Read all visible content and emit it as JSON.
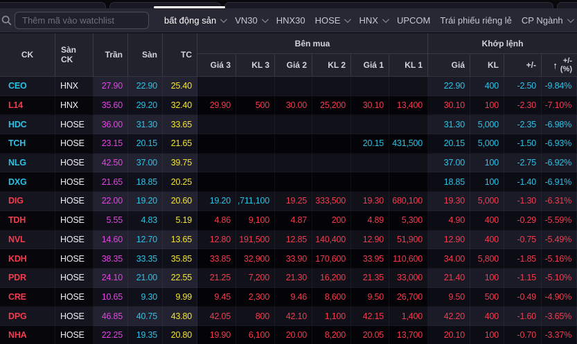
{
  "colors": {
    "ceiling": "#e445e4",
    "floor": "#2cc2e6",
    "reference": "#f3e52f",
    "down": "#f43b4e"
  },
  "topbar": {
    "search_placeholder": "Thêm mã vào watchlist",
    "tabs": [
      {
        "label": "bất động sản",
        "chevron": true,
        "active": true
      },
      {
        "label": "VN30",
        "chevron": true,
        "active": false
      },
      {
        "label": "HNX30",
        "chevron": false,
        "active": false
      },
      {
        "label": "HOSE",
        "chevron": true,
        "active": false
      },
      {
        "label": "HNX",
        "chevron": true,
        "active": false
      },
      {
        "label": "UPCOM",
        "chevron": false,
        "active": false
      },
      {
        "label": "Trái phiếu riêng lẻ",
        "chevron": false,
        "active": false
      },
      {
        "label": "CP Ngành",
        "chevron": true,
        "active": false
      }
    ]
  },
  "table": {
    "groups": {
      "buy": "Bên mua",
      "matched": "Khớp lệnh"
    },
    "header": {
      "ck": "CK",
      "san_ck": "Sàn CK",
      "tran": "Trần",
      "san": "Sàn",
      "tc": "TC",
      "gia3": "Giá 3",
      "kl3": "KL 3",
      "gia2": "Giá 2",
      "kl2": "KL 2",
      "gia1": "Giá 1",
      "kl1": "KL 1",
      "gia": "Giá",
      "kl": "KL",
      "chg": "+/-",
      "pct_line1": "+/-",
      "pct_line2": "(%)",
      "sort_icon": "up-arrow"
    },
    "rows": [
      {
        "ticker": "CEO",
        "ticker_state": "f",
        "exchange": "HNX",
        "ceiling": "27.90",
        "floor": "22.90",
        "reference": "25.40",
        "buy": [
          [
            "",
            ""
          ],
          [
            "",
            ""
          ],
          [
            "",
            ""
          ],
          [
            "",
            ""
          ],
          [
            "",
            ""
          ],
          [
            "",
            ""
          ]
        ],
        "match": [
          [
            "22.90",
            "f"
          ],
          [
            "400",
            "f"
          ],
          [
            "-2.50",
            "f"
          ],
          [
            "-9.84%",
            "f"
          ]
        ]
      },
      {
        "ticker": "L14",
        "ticker_state": "d",
        "exchange": "HNX",
        "ceiling": "35.60",
        "floor": "29.20",
        "reference": "32.40",
        "buy": [
          [
            "29.90",
            "d"
          ],
          [
            "500",
            "d"
          ],
          [
            "30.00",
            "d"
          ],
          [
            "25,200",
            "d"
          ],
          [
            "30.10",
            "d"
          ],
          [
            "13,400",
            "d"
          ]
        ],
        "match": [
          [
            "30.10",
            "d"
          ],
          [
            "100",
            "d"
          ],
          [
            "-2.30",
            "d"
          ],
          [
            "-7.10%",
            "d"
          ]
        ]
      },
      {
        "ticker": "HDC",
        "ticker_state": "f",
        "exchange": "HOSE",
        "ceiling": "36.00",
        "floor": "31.30",
        "reference": "33.65",
        "buy": [
          [
            "",
            ""
          ],
          [
            "",
            ""
          ],
          [
            "",
            ""
          ],
          [
            "",
            ""
          ],
          [
            "",
            ""
          ],
          [
            "",
            ""
          ]
        ],
        "match": [
          [
            "31.30",
            "f"
          ],
          [
            "5,000",
            "f"
          ],
          [
            "-2.35",
            "f"
          ],
          [
            "-6.98%",
            "f"
          ]
        ]
      },
      {
        "ticker": "TCH",
        "ticker_state": "f",
        "exchange": "HOSE",
        "ceiling": "23.15",
        "floor": "20.15",
        "reference": "21.65",
        "buy": [
          [
            "",
            ""
          ],
          [
            "",
            ""
          ],
          [
            "",
            ""
          ],
          [
            "",
            ""
          ],
          [
            "20.15",
            "f"
          ],
          [
            "431,500",
            "f"
          ]
        ],
        "match": [
          [
            "20.15",
            "f"
          ],
          [
            "5,000",
            "f"
          ],
          [
            "-1.50",
            "f"
          ],
          [
            "-6.93%",
            "f"
          ]
        ]
      },
      {
        "ticker": "NLG",
        "ticker_state": "f",
        "exchange": "HOSE",
        "ceiling": "42.50",
        "floor": "37.00",
        "reference": "39.75",
        "buy": [
          [
            "",
            ""
          ],
          [
            "",
            ""
          ],
          [
            "",
            ""
          ],
          [
            "",
            ""
          ],
          [
            "",
            ""
          ],
          [
            "",
            ""
          ]
        ],
        "match": [
          [
            "37.00",
            "f"
          ],
          [
            "100",
            "f"
          ],
          [
            "-2.75",
            "f"
          ],
          [
            "-6.92%",
            "f"
          ]
        ]
      },
      {
        "ticker": "DXG",
        "ticker_state": "f",
        "exchange": "HOSE",
        "ceiling": "21.65",
        "floor": "18.85",
        "reference": "20.25",
        "buy": [
          [
            "",
            ""
          ],
          [
            "",
            ""
          ],
          [
            "",
            ""
          ],
          [
            "",
            ""
          ],
          [
            "",
            ""
          ],
          [
            "",
            ""
          ]
        ],
        "match": [
          [
            "18.85",
            "f"
          ],
          [
            "100",
            "f"
          ],
          [
            "-1.40",
            "f"
          ],
          [
            "-6.91%",
            "f"
          ]
        ]
      },
      {
        "ticker": "DIG",
        "ticker_state": "d",
        "exchange": "HOSE",
        "ceiling": "22.00",
        "floor": "19.20",
        "reference": "20.60",
        "buy": [
          [
            "19.20",
            "f"
          ],
          [
            ",711,100",
            "f"
          ],
          [
            "19.25",
            "d"
          ],
          [
            "333,500",
            "d"
          ],
          [
            "19.30",
            "d"
          ],
          [
            "680,100",
            "d"
          ]
        ],
        "match": [
          [
            "19.30",
            "d"
          ],
          [
            "5,000",
            "d"
          ],
          [
            "-1.30",
            "d"
          ],
          [
            "-6.31%",
            "d"
          ]
        ]
      },
      {
        "ticker": "TDH",
        "ticker_state": "d",
        "exchange": "HOSE",
        "ceiling": "5.55",
        "floor": "4.83",
        "reference": "5.19",
        "buy": [
          [
            "4.86",
            "d"
          ],
          [
            "9,100",
            "d"
          ],
          [
            "4.87",
            "d"
          ],
          [
            "200",
            "d"
          ],
          [
            "4.89",
            "d"
          ],
          [
            "5,300",
            "d"
          ]
        ],
        "match": [
          [
            "4.90",
            "d"
          ],
          [
            "400",
            "d"
          ],
          [
            "-0.29",
            "d"
          ],
          [
            "-5.59%",
            "d"
          ]
        ]
      },
      {
        "ticker": "NVL",
        "ticker_state": "d",
        "exchange": "HOSE",
        "ceiling": "14.60",
        "floor": "12.70",
        "reference": "13.65",
        "buy": [
          [
            "12.80",
            "d"
          ],
          [
            "191,500",
            "d"
          ],
          [
            "12.85",
            "d"
          ],
          [
            "140,400",
            "d"
          ],
          [
            "12.90",
            "d"
          ],
          [
            "51,900",
            "d"
          ]
        ],
        "match": [
          [
            "12.90",
            "d"
          ],
          [
            "400",
            "d"
          ],
          [
            "-0.75",
            "d"
          ],
          [
            "-5.49%",
            "d"
          ]
        ]
      },
      {
        "ticker": "KDH",
        "ticker_state": "d",
        "exchange": "HOSE",
        "ceiling": "38.35",
        "floor": "33.35",
        "reference": "35.85",
        "buy": [
          [
            "33.85",
            "d"
          ],
          [
            "32,900",
            "d"
          ],
          [
            "33.90",
            "d"
          ],
          [
            "170,600",
            "d"
          ],
          [
            "33.95",
            "d"
          ],
          [
            "110,600",
            "d"
          ]
        ],
        "match": [
          [
            "34.00",
            "d"
          ],
          [
            "5,800",
            "d"
          ],
          [
            "-1.85",
            "d"
          ],
          [
            "-5.16%",
            "d"
          ]
        ]
      },
      {
        "ticker": "PDR",
        "ticker_state": "d",
        "exchange": "HOSE",
        "ceiling": "24.10",
        "floor": "21.00",
        "reference": "22.55",
        "buy": [
          [
            "21.25",
            "d"
          ],
          [
            "7,200",
            "d"
          ],
          [
            "21.30",
            "d"
          ],
          [
            "16,200",
            "d"
          ],
          [
            "21.35",
            "d"
          ],
          [
            "33,000",
            "d"
          ]
        ],
        "match": [
          [
            "21.40",
            "d"
          ],
          [
            "100",
            "d"
          ],
          [
            "-1.15",
            "d"
          ],
          [
            "-5.10%",
            "d"
          ]
        ]
      },
      {
        "ticker": "CRE",
        "ticker_state": "d",
        "exchange": "HOSE",
        "ceiling": "10.65",
        "floor": "9.30",
        "reference": "9.99",
        "buy": [
          [
            "9.45",
            "d"
          ],
          [
            "2,300",
            "d"
          ],
          [
            "9.46",
            "d"
          ],
          [
            "8,600",
            "d"
          ],
          [
            "9.50",
            "d"
          ],
          [
            "26,700",
            "d"
          ]
        ],
        "match": [
          [
            "9.50",
            "d"
          ],
          [
            "500",
            "d"
          ],
          [
            "-0.49",
            "d"
          ],
          [
            "-4.90%",
            "d"
          ]
        ]
      },
      {
        "ticker": "DPG",
        "ticker_state": "d",
        "exchange": "HOSE",
        "ceiling": "46.85",
        "floor": "40.75",
        "reference": "43.80",
        "buy": [
          [
            "42.05",
            "d"
          ],
          [
            "800",
            "d"
          ],
          [
            "42.10",
            "d"
          ],
          [
            "1,100",
            "d"
          ],
          [
            "42.15",
            "d"
          ],
          [
            "1,400",
            "d"
          ]
        ],
        "match": [
          [
            "42.20",
            "d"
          ],
          [
            "400",
            "d"
          ],
          [
            "-1.60",
            "d"
          ],
          [
            "-3.65%",
            "d"
          ]
        ]
      },
      {
        "ticker": "NHA",
        "ticker_state": "d",
        "exchange": "HOSE",
        "ceiling": "22.25",
        "floor": "19.35",
        "reference": "20.80",
        "buy": [
          [
            "19.90",
            "d"
          ],
          [
            "6,100",
            "d"
          ],
          [
            "20.00",
            "d"
          ],
          [
            "8,200",
            "d"
          ],
          [
            "20.05",
            "d"
          ],
          [
            "13,700",
            "d"
          ]
        ],
        "match": [
          [
            "20.10",
            "d"
          ],
          [
            "100",
            "d"
          ],
          [
            "-0.70",
            "d"
          ],
          [
            "-3.37%",
            "d"
          ]
        ]
      }
    ]
  }
}
